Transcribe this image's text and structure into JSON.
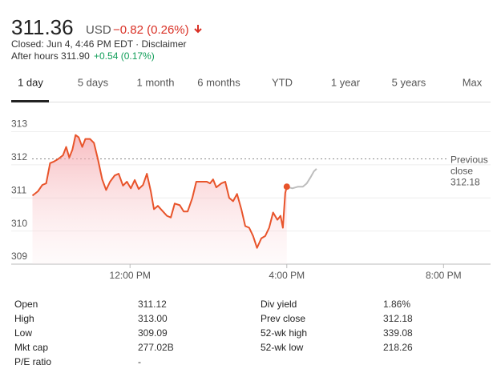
{
  "header": {
    "price": "311.36",
    "currency": "USD",
    "change": "−0.82 (0.26%)",
    "status": "Closed: Jun 4, 4:46 PM EDT · Disclaimer",
    "after_hours": "After hours 311.90",
    "after_hours_change": "+0.54 (0.17%)"
  },
  "tabs": {
    "items": [
      "1 day",
      "5 days",
      "1 month",
      "6 months",
      "YTD",
      "1 year",
      "5 years",
      "Max"
    ],
    "active": 0
  },
  "chart_data": {
    "type": "line",
    "xlim": [
      9.5,
      21.2
    ],
    "ylim": [
      309,
      313.4
    ],
    "xticks": [
      {
        "value": 12,
        "label": "12:00 PM"
      },
      {
        "value": 16,
        "label": "4:00 PM"
      },
      {
        "value": 20,
        "label": "8:00 PM"
      }
    ],
    "yticks": [
      309,
      310,
      311,
      312,
      313
    ],
    "grid": true,
    "reference_line": {
      "label": "Previous close",
      "value": 312.18
    },
    "series": [
      {
        "color": "#e8542b",
        "fill": true,
        "x": [
          9.51,
          9.65,
          9.76,
          9.86,
          9.96,
          10.06,
          10.16,
          10.29,
          10.37,
          10.45,
          10.53,
          10.61,
          10.69,
          10.78,
          10.86,
          10.98,
          11.08,
          11.18,
          11.29,
          11.39,
          11.49,
          11.61,
          11.71,
          11.82,
          11.92,
          12.02,
          12.12,
          12.22,
          12.33,
          12.43,
          12.53,
          12.61,
          12.71,
          12.84,
          12.94,
          13.04,
          13.14,
          13.27,
          13.37,
          13.47,
          13.59,
          13.69,
          13.8,
          13.96,
          14.04,
          14.12,
          14.2,
          14.33,
          14.43,
          14.53,
          14.63,
          14.73,
          14.84,
          14.94,
          15.04,
          15.14,
          15.24,
          15.35,
          15.45,
          15.55,
          15.65,
          15.76,
          15.84,
          15.9,
          15.96,
          16
        ],
        "values": [
          311.07,
          311.2,
          311.39,
          311.44,
          312.05,
          312.1,
          312.17,
          312.29,
          312.54,
          312.22,
          312.46,
          312.9,
          312.83,
          312.54,
          312.78,
          312.78,
          312.66,
          312.17,
          311.56,
          311.24,
          311.49,
          311.68,
          311.73,
          311.37,
          311.49,
          311.29,
          311.54,
          311.27,
          311.39,
          311.73,
          311.2,
          310.66,
          310.76,
          310.59,
          310.46,
          310.41,
          310.83,
          310.78,
          310.59,
          310.59,
          311,
          311.49,
          311.49,
          311.49,
          311.44,
          311.56,
          311.32,
          311.44,
          311.49,
          311,
          310.9,
          311.12,
          310.66,
          310.15,
          310.1,
          309.85,
          309.49,
          309.78,
          309.85,
          310.1,
          310.56,
          310.34,
          310.46,
          310.1,
          311.15,
          311.34
        ]
      },
      {
        "color": "#bdbdbd",
        "fill": false,
        "x": [
          16,
          16.14,
          16.29,
          16.41,
          16.51,
          16.61,
          16.69,
          16.76
        ],
        "values": [
          311.34,
          311.29,
          311.34,
          311.34,
          311.44,
          311.63,
          311.8,
          311.88
        ]
      }
    ]
  },
  "stats": {
    "rows": [
      [
        "Open",
        "311.12",
        "Div yield",
        "1.86%"
      ],
      [
        "High",
        "313.00",
        "Prev close",
        "312.18"
      ],
      [
        "Low",
        "309.09",
        "52-wk high",
        "339.08"
      ],
      [
        "Mkt cap",
        "277.02B",
        "52-wk low",
        "218.26"
      ],
      [
        "P/E ratio",
        "-",
        "",
        ""
      ]
    ]
  }
}
